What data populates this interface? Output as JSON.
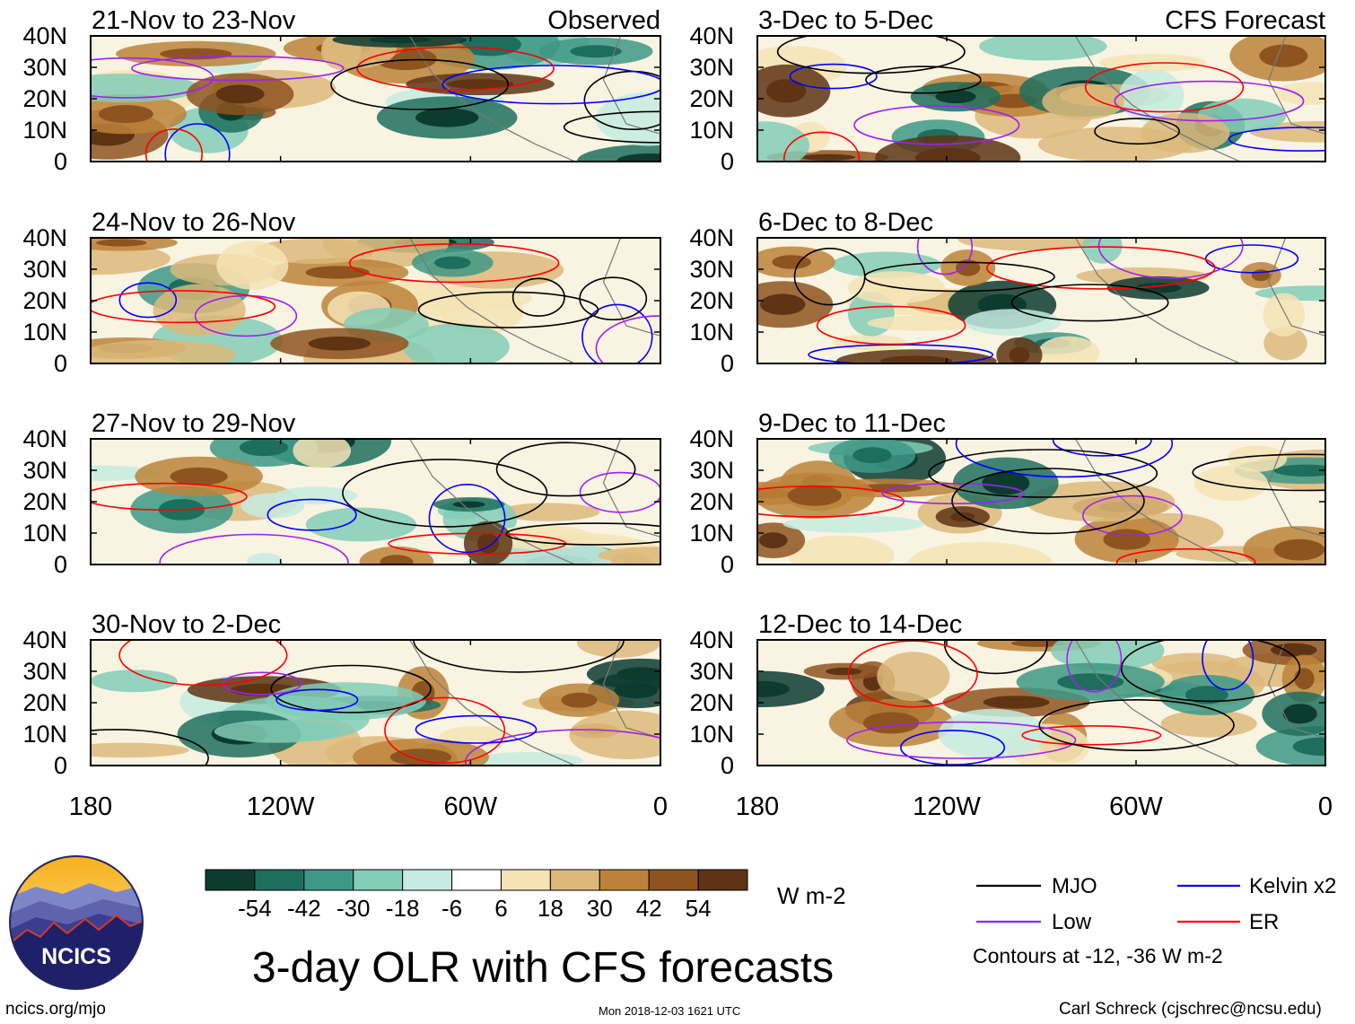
{
  "chart_data": {
    "type": "heatmap",
    "title": "3-day OLR with CFS forecasts",
    "units": "W m-2",
    "observed_label": "Observed",
    "forecast_label": "CFS Forecast",
    "x_ticks": [
      "180",
      "120W",
      "60W",
      "0"
    ],
    "x_values": [
      -180,
      -120,
      -60,
      0
    ],
    "y_ticks": [
      "40N",
      "30N",
      "20N",
      "10N",
      "0"
    ],
    "y_values": [
      40,
      30,
      20,
      10,
      0
    ],
    "panels": [
      {
        "period": "21-Nov to 23-Nov",
        "kind": "observed"
      },
      {
        "period": "24-Nov to 26-Nov",
        "kind": "observed"
      },
      {
        "period": "27-Nov to 29-Nov",
        "kind": "observed"
      },
      {
        "period": "30-Nov to 2-Dec",
        "kind": "observed"
      },
      {
        "period": "3-Dec to 5-Dec",
        "kind": "forecast"
      },
      {
        "period": "6-Dec to 8-Dec",
        "kind": "forecast"
      },
      {
        "period": "9-Dec to 11-Dec",
        "kind": "forecast"
      },
      {
        "period": "12-Dec to 14-Dec",
        "kind": "forecast"
      }
    ],
    "colorbar": {
      "labels": [
        "-54",
        "-42",
        "-30",
        "-18",
        "-6",
        "6",
        "18",
        "30",
        "42",
        "54"
      ],
      "colors": [
        "#0d3b30",
        "#1e6e5e",
        "#3e9886",
        "#82cdb7",
        "#c6ebe0",
        "#ffffff",
        "#f5e3b5",
        "#dcb87a",
        "#bc8239",
        "#8e5420",
        "#5e3414"
      ]
    },
    "legend": {
      "items": [
        {
          "label": "MJO",
          "color": "#000000"
        },
        {
          "label": "Kelvin x2",
          "color": "#0000ff"
        },
        {
          "label": "Low",
          "color": "#a020f0"
        },
        {
          "label": "ER",
          "color": "#ff0000"
        }
      ],
      "note": "Contours at -12, -36 W m-2"
    }
  },
  "footer": {
    "logo_text": "NCICS",
    "url": "ncics.org/mjo",
    "timestamp": "Mon 2018-12-03 1621 UTC",
    "credit": "Carl Schreck (cjschrec@ncsu.edu)"
  }
}
